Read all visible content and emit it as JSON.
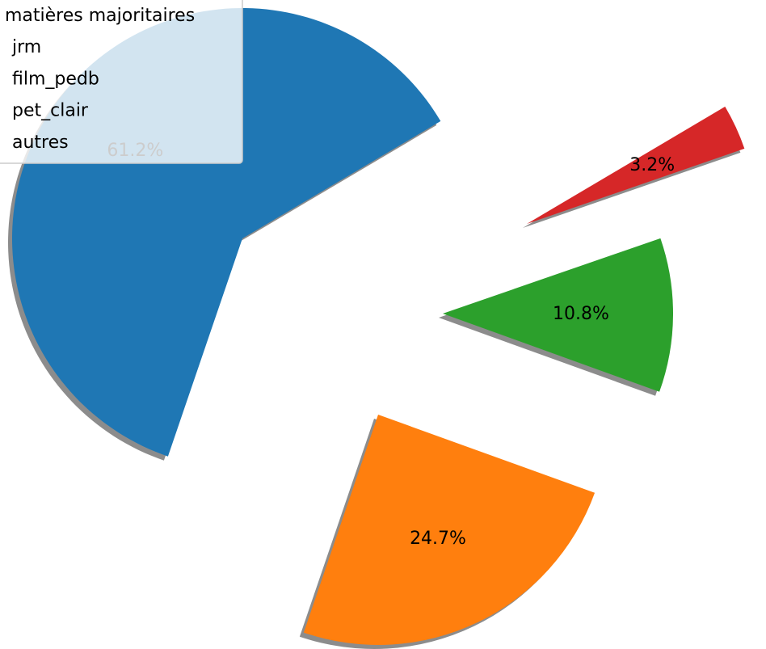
{
  "chart_data": {
    "type": "pie",
    "legend_title": "matières majoritaires",
    "categories": [
      "jrm",
      "film_pedb",
      "pet_clair",
      "autres"
    ],
    "values": [
      61.2,
      24.7,
      10.8,
      3.2
    ],
    "value_labels": [
      "61.2%",
      "24.7%",
      "10.8%",
      "3.2%"
    ],
    "colors": [
      "#1f77b4",
      "#ff7f0e",
      "#2ca02c",
      "#d62728"
    ],
    "shadow": true,
    "legend": "upper left"
  }
}
